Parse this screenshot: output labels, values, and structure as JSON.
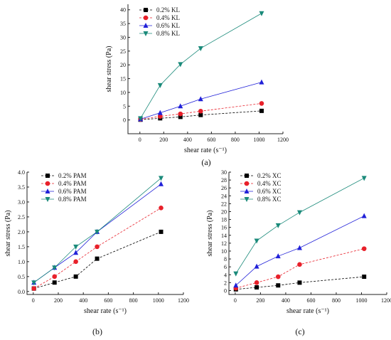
{
  "figure": {
    "panels": [
      {
        "panel_label": "(a)",
        "chart_data": {
          "type": "line",
          "xlabel": "shear rate (s⁻¹)",
          "ylabel": "shear stress (Pa)",
          "xlim": [
            -100,
            1200
          ],
          "ylim": [
            -5,
            42
          ],
          "xticks": [
            0,
            200,
            400,
            600,
            800,
            1000,
            1200
          ],
          "yticks": [
            0,
            5,
            10,
            15,
            20,
            25,
            30,
            35,
            40
          ],
          "grid": false,
          "legend_position": "top-left",
          "x": [
            5.1,
            170,
            340,
            510,
            1021
          ],
          "series": [
            {
              "name": "0.2% KL",
              "color": "#000000",
              "marker": "square",
              "dash": true,
              "values": [
                0.1,
                0.6,
                1.1,
                1.8,
                3.3
              ]
            },
            {
              "name": "0.4% KL",
              "color": "#e8202a",
              "marker": "circle",
              "dash": true,
              "values": [
                0.2,
                1.3,
                2.2,
                3.2,
                6.0
              ]
            },
            {
              "name": "0.6% KL",
              "color": "#2020d8",
              "marker": "triangle-up",
              "dash": false,
              "values": [
                0.3,
                2.6,
                5.0,
                7.6,
                13.7
              ]
            },
            {
              "name": "0.8% KL",
              "color": "#1a8a7a",
              "marker": "triangle-down",
              "dash": false,
              "values": [
                0.6,
                12.6,
                20.2,
                26.0,
                38.7
              ]
            }
          ]
        }
      },
      {
        "panel_label": "(b)",
        "chart_data": {
          "type": "line",
          "xlabel": "shear rate (s⁻¹)",
          "ylabel": "shear stress (Pa)",
          "xlim": [
            -50,
            1200
          ],
          "ylim": [
            -0.1,
            4.0
          ],
          "xticks": [
            0,
            200,
            400,
            600,
            800,
            1000,
            1200
          ],
          "yticks": [
            0.0,
            0.5,
            1.0,
            1.5,
            2.0,
            2.5,
            3.0,
            3.5,
            4.0
          ],
          "ytick_labels": [
            "0.0",
            "0.5",
            "1.0",
            "1.5",
            "2.0",
            "2.5",
            "3.0",
            "3.5",
            "4.0"
          ],
          "grid": false,
          "legend_position": "top-left",
          "x": [
            5.1,
            170,
            340,
            510,
            1021
          ],
          "series": [
            {
              "name": "0.2% PAM",
              "color": "#000000",
              "marker": "square",
              "dash": true,
              "values": [
                0.1,
                0.3,
                0.5,
                1.1,
                2.0
              ]
            },
            {
              "name": "0.4% PAM",
              "color": "#e8202a",
              "marker": "circle",
              "dash": true,
              "values": [
                0.1,
                0.5,
                1.0,
                1.5,
                2.8
              ]
            },
            {
              "name": "0.6% PAM",
              "color": "#2020d8",
              "marker": "triangle-up",
              "dash": false,
              "values": [
                0.3,
                0.8,
                1.3,
                2.0,
                3.6
              ]
            },
            {
              "name": "0.8% PAM",
              "color": "#1a8a7a",
              "marker": "triangle-down",
              "dash": false,
              "values": [
                0.3,
                0.8,
                1.5,
                2.0,
                3.8
              ]
            }
          ]
        }
      },
      {
        "panel_label": "(c)",
        "chart_data": {
          "type": "line",
          "xlabel": "shear rate (s⁻¹)",
          "ylabel": "shear stress (Pa)",
          "xlim": [
            -50,
            1200
          ],
          "ylim": [
            -1,
            30
          ],
          "xticks": [
            0,
            200,
            400,
            600,
            800,
            1000,
            1200
          ],
          "yticks": [
            0,
            2,
            4,
            6,
            8,
            10,
            12,
            14,
            16,
            18,
            20,
            22,
            24,
            26,
            28,
            30
          ],
          "grid": false,
          "legend_position": "top-left",
          "x": [
            5.1,
            170,
            340,
            510,
            1021
          ],
          "series": [
            {
              "name": "0.2% XC",
              "color": "#000000",
              "marker": "square",
              "dash": true,
              "values": [
                0.3,
                0.8,
                1.3,
                2.0,
                3.5
              ]
            },
            {
              "name": "0.4% XC",
              "color": "#e8202a",
              "marker": "circle",
              "dash": true,
              "values": [
                0.6,
                2.0,
                3.5,
                6.6,
                10.6
              ]
            },
            {
              "name": "0.6% XC",
              "color": "#2020d8",
              "marker": "triangle-up",
              "dash": false,
              "values": [
                1.3,
                6.1,
                8.7,
                10.8,
                18.9
              ]
            },
            {
              "name": "0.8% XC",
              "color": "#1a8a7a",
              "marker": "triangle-down",
              "dash": false,
              "values": [
                4.3,
                12.6,
                16.5,
                19.8,
                28.5
              ]
            }
          ]
        }
      }
    ]
  }
}
